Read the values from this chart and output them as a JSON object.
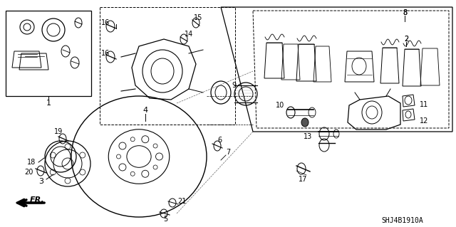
{
  "bg_color": "#ffffff",
  "fig_width": 6.4,
  "fig_height": 3.19,
  "dpi": 100,
  "diagram_code": "SHJ4B1910A",
  "line_color": "#000000",
  "text_color": "#000000",
  "gray": "#888888"
}
